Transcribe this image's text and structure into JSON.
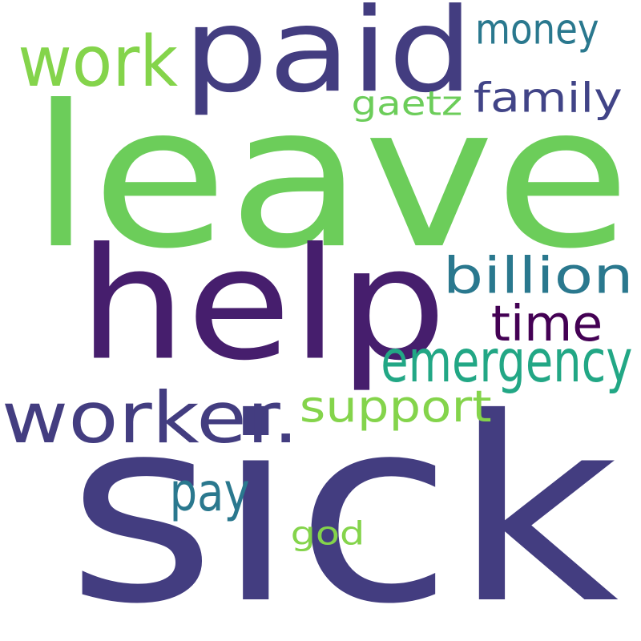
{
  "words": [
    {
      "key": "sick",
      "text": "sick",
      "color": "#433d80"
    },
    {
      "key": "leave",
      "text": "leave",
      "color": "#6ccd5a"
    },
    {
      "key": "help",
      "text": "help",
      "color": "#461e6d"
    },
    {
      "key": "paid",
      "text": "paid",
      "color": "#433d80"
    },
    {
      "key": "worker",
      "text": "worker.",
      "color": "#433d80"
    },
    {
      "key": "work",
      "text": "work",
      "color": "#84d44b"
    },
    {
      "key": "emergency",
      "text": "emergency",
      "color": "#22a785"
    },
    {
      "key": "billion",
      "text": "billion",
      "color": "#2a788e"
    },
    {
      "key": "support",
      "text": "support",
      "color": "#84d44b"
    },
    {
      "key": "time",
      "text": "time",
      "color": "#440154"
    },
    {
      "key": "family",
      "text": "family",
      "color": "#414487"
    },
    {
      "key": "money",
      "text": "money",
      "color": "#2a788e"
    },
    {
      "key": "pay",
      "text": "pay",
      "color": "#2a788e"
    },
    {
      "key": "gaetz",
      "text": "gaetz",
      "color": "#6ccd5a"
    },
    {
      "key": "god",
      "text": "god",
      "color": "#84d44b"
    }
  ]
}
